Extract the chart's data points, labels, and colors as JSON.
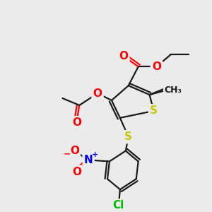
{
  "bg_color": "#ebebeb",
  "bond_color": "#1a1a1a",
  "bond_width": 1.6,
  "label_colors": {
    "S": "#c8c800",
    "O": "#ff0000",
    "N": "#0000ee",
    "Cl": "#00bb00",
    "C": "#1a1a1a"
  }
}
